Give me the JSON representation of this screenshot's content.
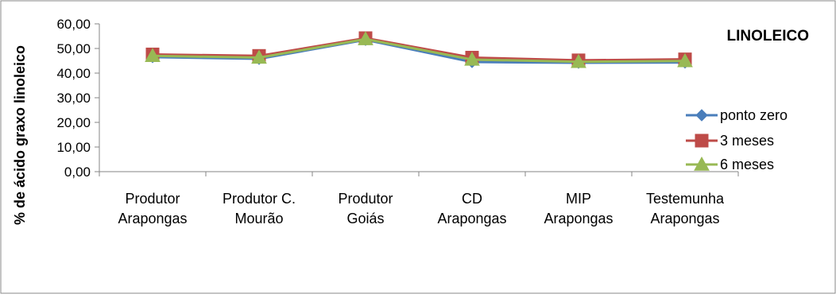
{
  "chart_data": {
    "type": "line",
    "title": "LINOLEICO",
    "xlabel": "",
    "ylabel": "% de ácido graxo linoleico",
    "ylim": [
      0,
      60
    ],
    "yticks": [
      "0,00",
      "10,00",
      "20,00",
      "30,00",
      "40,00",
      "50,00",
      "60,00"
    ],
    "ytick_values": [
      0,
      10,
      20,
      30,
      40,
      50,
      60
    ],
    "categories": [
      [
        "Produtor",
        "Arapongas"
      ],
      [
        "Produtor C.",
        "Mourão"
      ],
      [
        "Produtor",
        "Goiás"
      ],
      [
        "CD",
        "Arapongas"
      ],
      [
        "MIP",
        "Arapongas"
      ],
      [
        "Testemunha",
        "Arapongas"
      ]
    ],
    "series": [
      {
        "name": "ponto zero",
        "values": [
          46.5,
          45.8,
          53.5,
          44.5,
          44.2,
          44.3
        ],
        "color": "#4a7ebb",
        "marker": "diamond"
      },
      {
        "name": "3 meses",
        "values": [
          47.6,
          47.0,
          54.2,
          46.3,
          45.2,
          45.6
        ],
        "color": "#be4b48",
        "marker": "square"
      },
      {
        "name": "6 meses",
        "values": [
          47.0,
          46.3,
          53.8,
          45.5,
          44.6,
          44.9
        ],
        "color": "#98b954",
        "marker": "triangle"
      }
    ],
    "grid": false,
    "legend_position": "right"
  }
}
